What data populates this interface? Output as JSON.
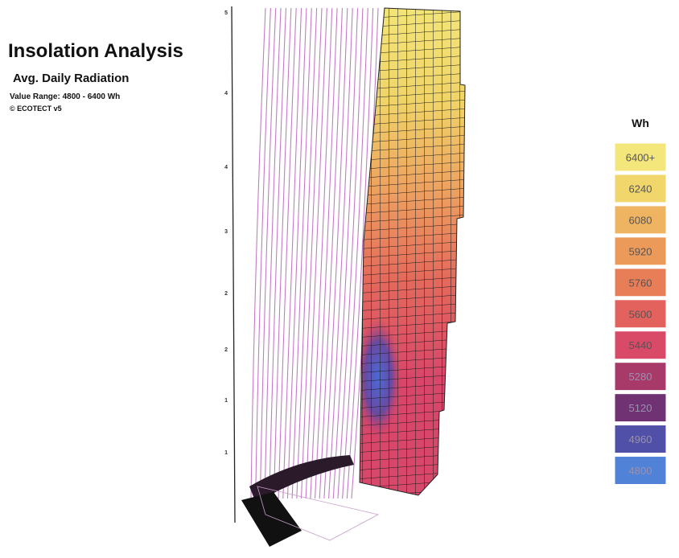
{
  "header": {
    "title": "Insolation Analysis",
    "subtitle": "Avg. Daily Radiation",
    "range": "Value Range: 4800 - 6400 Wh",
    "credit": "© ECOTECT v5"
  },
  "axis": {
    "labels": [
      "5",
      "4",
      "4",
      "3",
      "2",
      "2",
      "1",
      "1"
    ]
  },
  "legend": {
    "unit": "Wh",
    "items": [
      {
        "label": "6400+",
        "color": "#f3e67a"
      },
      {
        "label": "6240",
        "color": "#f1d66c"
      },
      {
        "label": "6080",
        "color": "#efb462"
      },
      {
        "label": "5920",
        "color": "#ec9a5a"
      },
      {
        "label": "5760",
        "color": "#e87e58"
      },
      {
        "label": "5600",
        "color": "#e4625e"
      },
      {
        "label": "5440",
        "color": "#d84a68"
      },
      {
        "label": "5280",
        "color": "#a83a6a"
      },
      {
        "label": "5120",
        "color": "#703272"
      },
      {
        "label": "4960",
        "color": "#5050a8"
      },
      {
        "label": "4800",
        "color": "#5082d8"
      }
    ]
  }
}
